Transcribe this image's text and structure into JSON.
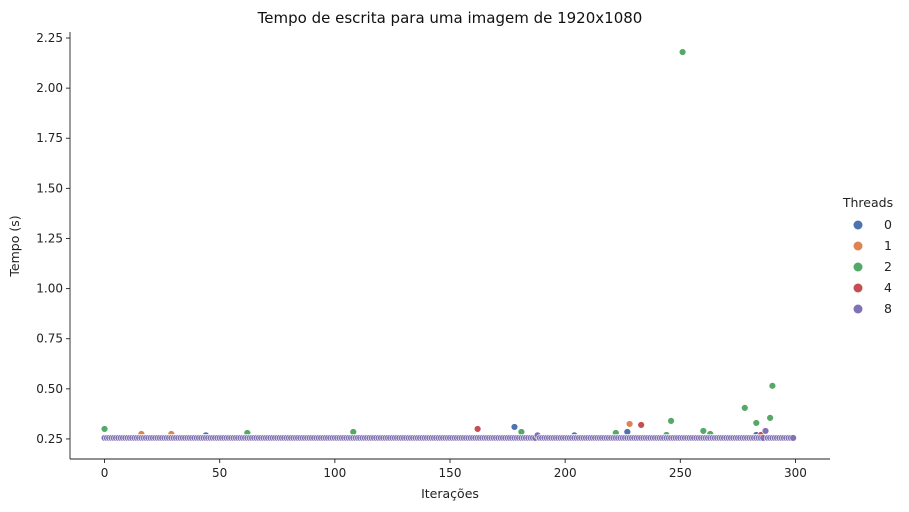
{
  "chart_data": {
    "type": "scatter",
    "title": "Tempo de escrita para uma imagem de 1920x1080",
    "xlabel": "Iterações",
    "ylabel": "Tempo (s)",
    "xlim": [
      -15,
      315
    ],
    "ylim": [
      0.15,
      2.28
    ],
    "xticks": [
      0,
      50,
      100,
      150,
      200,
      250,
      300
    ],
    "yticks": [
      0.25,
      0.5,
      0.75,
      1.0,
      1.25,
      1.5,
      1.75,
      2.0,
      2.25
    ],
    "ytick_labels": [
      "0.25",
      "0.50",
      "0.75",
      "1.00",
      "1.25",
      "1.50",
      "1.75",
      "2.00",
      "2.25"
    ],
    "grid": false,
    "n_points_per_series": 300,
    "baseline": 0.255,
    "legend": {
      "title": "Threads",
      "placement": "right",
      "entries": [
        "0",
        "1",
        "2",
        "4",
        "8"
      ]
    },
    "series": [
      {
        "name": "0",
        "color": "#4c72b0",
        "outliers": [
          [
            44,
            0.268
          ],
          [
            178,
            0.31
          ],
          [
            188,
            0.268
          ],
          [
            204,
            0.268
          ],
          [
            227,
            0.285
          ],
          [
            283,
            0.27
          ]
        ]
      },
      {
        "name": "1",
        "color": "#dd8452",
        "outliers": [
          [
            16,
            0.275
          ],
          [
            29,
            0.275
          ],
          [
            228,
            0.325
          ],
          [
            286,
            0.275
          ]
        ]
      },
      {
        "name": "2",
        "color": "#55a868",
        "outliers": [
          [
            0,
            0.3
          ],
          [
            62,
            0.28
          ],
          [
            108,
            0.285
          ],
          [
            181,
            0.285
          ],
          [
            222,
            0.28
          ],
          [
            244,
            0.27
          ],
          [
            246,
            0.34
          ],
          [
            251,
            2.18
          ],
          [
            260,
            0.29
          ],
          [
            263,
            0.275
          ],
          [
            278,
            0.405
          ],
          [
            283,
            0.33
          ],
          [
            289,
            0.355
          ],
          [
            290,
            0.515
          ]
        ]
      },
      {
        "name": "4",
        "color": "#c44e52",
        "outliers": [
          [
            162,
            0.3
          ],
          [
            233,
            0.32
          ],
          [
            285,
            0.27
          ]
        ]
      },
      {
        "name": "8",
        "color": "#8172b3",
        "outliers": [
          [
            188,
            0.268
          ],
          [
            287,
            0.29
          ],
          [
            299,
            0.255
          ]
        ]
      }
    ]
  }
}
